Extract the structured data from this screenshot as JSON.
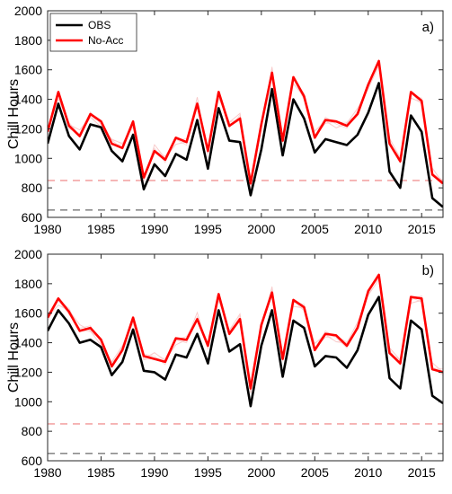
{
  "chart_data": [
    {
      "type": "line",
      "panel_label": "a)",
      "ylabel": "Chill Hours",
      "xlim": [
        1980,
        2017
      ],
      "ylim": [
        600,
        2000
      ],
      "xticks": [
        1980,
        1985,
        1990,
        1995,
        2000,
        2005,
        2010,
        2015
      ],
      "yticks": [
        600,
        800,
        1000,
        1200,
        1400,
        1600,
        1800,
        2000
      ],
      "x": [
        1980,
        1981,
        1982,
        1983,
        1984,
        1985,
        1986,
        1987,
        1988,
        1989,
        1990,
        1991,
        1992,
        1993,
        1994,
        1995,
        1996,
        1997,
        1998,
        1999,
        2000,
        2001,
        2002,
        2003,
        2004,
        2005,
        2006,
        2007,
        2008,
        2009,
        2010,
        2011,
        2012,
        2013,
        2014,
        2015,
        2016,
        2017
      ],
      "series": [
        {
          "name": "OBS",
          "color": "#000000",
          "values": [
            1100,
            1370,
            1150,
            1060,
            1230,
            1210,
            1050,
            980,
            1160,
            790,
            960,
            880,
            1030,
            990,
            1260,
            930,
            1340,
            1120,
            1110,
            750,
            1060,
            1470,
            1020,
            1400,
            1270,
            1040,
            1130,
            1110,
            1090,
            1160,
            1310,
            1510,
            910,
            800,
            1290,
            1180,
            730,
            670
          ]
        },
        {
          "name": "No-Acc",
          "color": "#ff0000",
          "values": [
            1180,
            1450,
            1220,
            1150,
            1300,
            1250,
            1100,
            1070,
            1250,
            870,
            1050,
            990,
            1140,
            1110,
            1370,
            1050,
            1450,
            1220,
            1270,
            830,
            1230,
            1580,
            1120,
            1550,
            1420,
            1140,
            1260,
            1250,
            1220,
            1300,
            1500,
            1660,
            1100,
            980,
            1450,
            1390,
            890,
            830
          ]
        }
      ],
      "reference_lines": [
        {
          "y": 850,
          "color": "#f4a6a6"
        },
        {
          "y": 650,
          "color": "#8c8c8c"
        }
      ],
      "legend_position": "top-left",
      "ensemble_color": "#f7c7c7"
    },
    {
      "type": "line",
      "panel_label": "b)",
      "ylabel": "Chill Hours",
      "xlim": [
        1980,
        2017
      ],
      "ylim": [
        600,
        2000
      ],
      "xticks": [
        1980,
        1985,
        1990,
        1995,
        2000,
        2005,
        2010,
        2015
      ],
      "yticks": [
        600,
        800,
        1000,
        1200,
        1400,
        1600,
        1800,
        2000
      ],
      "x": [
        1980,
        1981,
        1982,
        1983,
        1984,
        1985,
        1986,
        1987,
        1988,
        1989,
        1990,
        1991,
        1992,
        1993,
        1994,
        1995,
        1996,
        1997,
        1998,
        1999,
        2000,
        2001,
        2002,
        2003,
        2004,
        2005,
        2006,
        2007,
        2008,
        2009,
        2010,
        2011,
        2012,
        2013,
        2014,
        2015,
        2016,
        2017
      ],
      "series": [
        {
          "name": "OBS",
          "color": "#000000",
          "values": [
            1480,
            1620,
            1530,
            1400,
            1420,
            1370,
            1180,
            1270,
            1490,
            1210,
            1200,
            1150,
            1320,
            1300,
            1460,
            1260,
            1620,
            1340,
            1390,
            970,
            1380,
            1620,
            1170,
            1550,
            1500,
            1240,
            1310,
            1300,
            1230,
            1350,
            1590,
            1710,
            1160,
            1090,
            1550,
            1490,
            1040,
            990
          ]
        },
        {
          "name": "No-Acc",
          "color": "#ff0000",
          "values": [
            1570,
            1700,
            1610,
            1480,
            1500,
            1420,
            1240,
            1350,
            1570,
            1310,
            1290,
            1270,
            1430,
            1420,
            1560,
            1380,
            1730,
            1460,
            1560,
            1090,
            1520,
            1740,
            1290,
            1690,
            1640,
            1350,
            1460,
            1450,
            1380,
            1500,
            1750,
            1860,
            1330,
            1260,
            1710,
            1700,
            1220,
            1200
          ]
        }
      ],
      "reference_lines": [
        {
          "y": 850,
          "color": "#f4a6a6"
        },
        {
          "y": 650,
          "color": "#8c8c8c"
        }
      ],
      "legend_position": "none",
      "ensemble_color": "#f7c7c7"
    }
  ]
}
